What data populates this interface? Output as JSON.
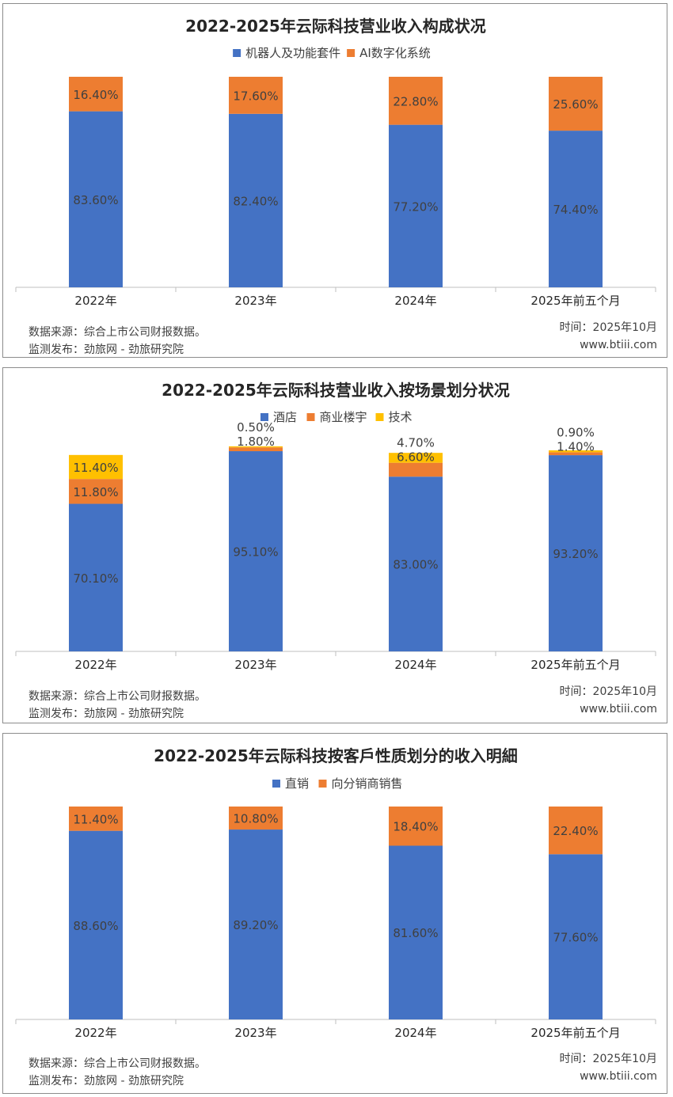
{
  "colors": {
    "blue": "#4472c4",
    "orange": "#ed7d31",
    "yellow": "#ffc000",
    "axis": "#bfbfbf",
    "text": "#404040"
  },
  "chart_data": [
    {
      "type": "bar",
      "stacked": true,
      "title": "2022-2025年云际科技营业收入构成状况",
      "categories": [
        "2022年",
        "2023年",
        "2024年",
        "2025年前五个月"
      ],
      "series": [
        {
          "name": "机器人及功能套件",
          "color": "#4472c4",
          "values": [
            83.6,
            82.4,
            77.2,
            74.4
          ],
          "labels": [
            "83.60%",
            "82.40%",
            "77.20%",
            "74.40%"
          ]
        },
        {
          "name": "AI数字化系统",
          "color": "#ed7d31",
          "values": [
            16.4,
            17.6,
            22.8,
            25.6
          ],
          "labels": [
            "16.40%",
            "17.60%",
            "22.80%",
            "25.60%"
          ]
        }
      ],
      "ylim": [
        0,
        100
      ],
      "legend": "top",
      "source": "数据来源：综合上市公司财报数据。",
      "publisher": "监测发布：劲旅网 - 劲旅研究院",
      "time": "时间：2025年10月",
      "site": "www.btiii.com"
    },
    {
      "type": "bar",
      "stacked": true,
      "title": "2022-2025年云际科技营业收入按场景划分状况",
      "categories": [
        "2022年",
        "2023年",
        "2024年",
        "2025年前五个月"
      ],
      "series": [
        {
          "name": "酒店",
          "color": "#4472c4",
          "values": [
            70.1,
            95.1,
            83.0,
            93.2
          ],
          "labels": [
            "70.10%",
            "95.10%",
            "83.00%",
            "93.20%"
          ]
        },
        {
          "name": "商业楼宇",
          "color": "#ed7d31",
          "values": [
            11.8,
            1.8,
            6.6,
            1.4
          ],
          "labels": [
            "11.80%",
            "1.80%",
            "6.60%",
            "1.40%"
          ]
        },
        {
          "name": "技术",
          "color": "#ffc000",
          "values": [
            11.4,
            0.5,
            4.7,
            0.9
          ],
          "labels": [
            "11.40%",
            "0.50%",
            "4.70%",
            "0.90%"
          ]
        }
      ],
      "ylim": [
        0,
        100
      ],
      "legend": "top",
      "source": "数据来源：综合上市公司财报数据。",
      "publisher": "监测发布：劲旅网 - 劲旅研究院",
      "time": "时间：2025年10月",
      "site": "www.btiii.com"
    },
    {
      "type": "bar",
      "stacked": true,
      "title": "2022-2025年云际科技按客戶性质划分的收入明細",
      "categories": [
        "2022年",
        "2023年",
        "2024年",
        "2025年前五个月"
      ],
      "series": [
        {
          "name": "直销",
          "color": "#4472c4",
          "values": [
            88.6,
            89.2,
            81.6,
            77.6
          ],
          "labels": [
            "88.60%",
            "89.20%",
            "81.60%",
            "77.60%"
          ]
        },
        {
          "name": "向分销商销售",
          "color": "#ed7d31",
          "values": [
            11.4,
            10.8,
            18.4,
            22.4
          ],
          "labels": [
            "11.40%",
            "10.80%",
            "18.40%",
            "22.40%"
          ]
        }
      ],
      "ylim": [
        0,
        100
      ],
      "legend": "top",
      "source": "数据来源：综合上市公司财报数据。",
      "publisher": "监测发布：劲旅网 - 劲旅研究院",
      "time": "时间：2025年10月",
      "site": "www.btiii.com"
    }
  ]
}
